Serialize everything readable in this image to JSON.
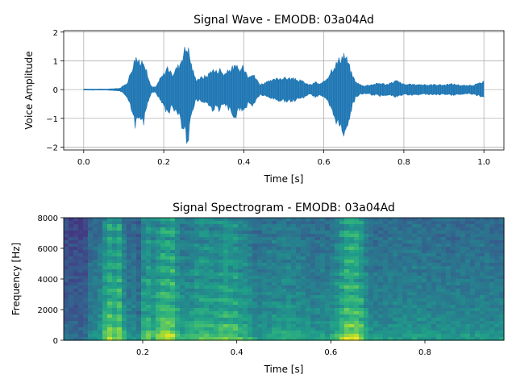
{
  "chart_data": [
    {
      "type": "line",
      "title": "Signal Wave - EMODB: 03a04Ad",
      "xlabel": "Time [s]",
      "ylabel": "Voice Amplitude",
      "xlim": [
        -0.05,
        1.05
      ],
      "ylim": [
        -2.1,
        2.05
      ],
      "xticks": [
        0.0,
        0.2,
        0.4,
        0.6,
        0.8,
        1.0
      ],
      "xtick_labels": [
        "0.0",
        "0.2",
        "0.4",
        "0.6",
        "0.8",
        "1.0"
      ],
      "yticks": [
        -2,
        -1,
        0,
        1,
        2
      ],
      "ytick_labels": [
        "−2",
        "−1",
        "0",
        "1",
        "2"
      ],
      "grid": true,
      "color": "#1f77b4",
      "envelope": {
        "t": [
          0.0,
          0.02,
          0.06,
          0.09,
          0.1,
          0.11,
          0.12,
          0.13,
          0.14,
          0.15,
          0.16,
          0.17,
          0.18,
          0.19,
          0.2,
          0.21,
          0.22,
          0.23,
          0.24,
          0.25,
          0.26,
          0.27,
          0.28,
          0.29,
          0.3,
          0.31,
          0.32,
          0.33,
          0.34,
          0.35,
          0.36,
          0.37,
          0.38,
          0.39,
          0.4,
          0.41,
          0.42,
          0.43,
          0.44,
          0.45,
          0.47,
          0.49,
          0.51,
          0.53,
          0.55,
          0.56,
          0.57,
          0.58,
          0.59,
          0.6,
          0.61,
          0.62,
          0.63,
          0.64,
          0.65,
          0.66,
          0.67,
          0.68,
          0.69,
          0.7,
          0.72,
          0.74,
          0.76,
          0.78,
          0.8,
          0.82,
          0.84,
          0.86,
          0.88,
          0.9,
          0.92,
          0.94,
          0.96,
          0.98,
          0.99,
          1.0
        ],
        "max": [
          0.02,
          0.02,
          0.02,
          0.05,
          0.15,
          0.3,
          0.8,
          1.3,
          1.0,
          1.2,
          0.5,
          0.1,
          0.1,
          0.4,
          0.6,
          0.9,
          0.55,
          0.8,
          1.0,
          1.5,
          1.7,
          0.9,
          0.4,
          0.45,
          0.5,
          0.55,
          0.8,
          0.7,
          0.8,
          0.6,
          0.7,
          0.85,
          0.9,
          0.75,
          0.9,
          0.55,
          0.65,
          0.45,
          0.2,
          0.25,
          0.35,
          0.45,
          0.45,
          0.4,
          0.3,
          0.2,
          0.2,
          0.3,
          0.2,
          0.3,
          0.5,
          0.8,
          1.0,
          1.2,
          1.4,
          1.1,
          0.6,
          0.3,
          0.2,
          0.15,
          0.2,
          0.25,
          0.2,
          0.35,
          0.2,
          0.2,
          0.2,
          0.18,
          0.2,
          0.18,
          0.22,
          0.18,
          0.15,
          0.2,
          0.25,
          0.3
        ],
        "min": [
          -0.02,
          -0.02,
          -0.02,
          -0.05,
          -0.15,
          -0.3,
          -0.9,
          -1.45,
          -1.0,
          -1.3,
          -0.5,
          -0.1,
          -0.1,
          -0.4,
          -0.6,
          -1.0,
          -0.6,
          -0.9,
          -1.1,
          -1.6,
          -2.0,
          -0.9,
          -0.4,
          -0.45,
          -0.5,
          -0.55,
          -0.8,
          -0.7,
          -0.8,
          -0.6,
          -0.7,
          -0.9,
          -1.05,
          -0.75,
          -0.9,
          -0.55,
          -0.65,
          -0.45,
          -0.2,
          -0.25,
          -0.35,
          -0.45,
          -0.45,
          -0.4,
          -0.3,
          -0.2,
          -0.2,
          -0.3,
          -0.2,
          -0.3,
          -0.5,
          -0.9,
          -1.2,
          -1.5,
          -1.7,
          -1.3,
          -0.7,
          -0.3,
          -0.2,
          -0.15,
          -0.2,
          -0.25,
          -0.2,
          -0.3,
          -0.2,
          -0.2,
          -0.2,
          -0.18,
          -0.2,
          -0.18,
          -0.22,
          -0.18,
          -0.15,
          -0.2,
          -0.25,
          -0.3
        ]
      }
    },
    {
      "type": "heatmap",
      "title": "Signal Spectrogram - EMODB: 03a04Ad",
      "xlabel": "Time [s]",
      "ylabel": "Frequency [Hz]",
      "xlim": [
        0.032,
        0.968
      ],
      "ylim": [
        0,
        8000
      ],
      "xticks": [
        0.2,
        0.4,
        0.6,
        0.8
      ],
      "xtick_labels": [
        "0.2",
        "0.4",
        "0.6",
        "0.8"
      ],
      "yticks": [
        0,
        2000,
        4000,
        6000,
        8000
      ],
      "ytick_labels": [
        "0",
        "2000",
        "4000",
        "6000",
        "8000"
      ],
      "colormap": "viridis"
    }
  ]
}
